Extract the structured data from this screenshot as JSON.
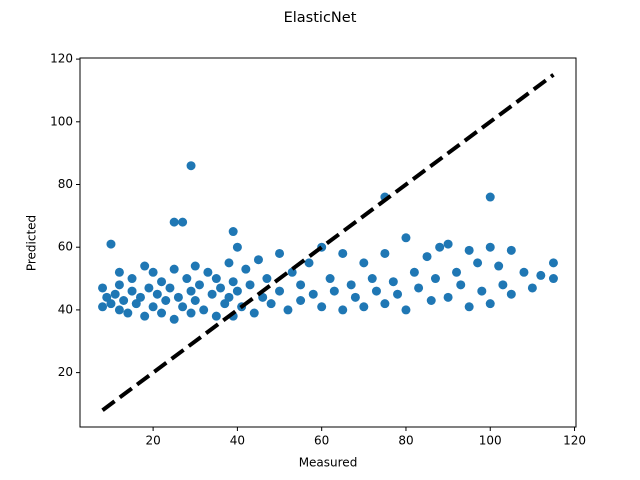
{
  "chart_data": {
    "type": "scatter",
    "title": "ElasticNet",
    "x_label": "Measured",
    "y_label": "Predicted",
    "color": "#1f77b4",
    "x": [
      8,
      8,
      9,
      10,
      11,
      12,
      12,
      13,
      14,
      15,
      15,
      16,
      17,
      18,
      18,
      19,
      20,
      20,
      21,
      22,
      22,
      23,
      24,
      25,
      25,
      26,
      27,
      28,
      29,
      29,
      30,
      30,
      31,
      32,
      33,
      34,
      35,
      35,
      36,
      37,
      38,
      38,
      39,
      39,
      40,
      40,
      41,
      42,
      43,
      44,
      45,
      46,
      47,
      48,
      50,
      50,
      52,
      53,
      55,
      55,
      57,
      58,
      60,
      60,
      62,
      63,
      65,
      65,
      67,
      68,
      70,
      70,
      72,
      73,
      75,
      75,
      77,
      78,
      80,
      80,
      82,
      83,
      85,
      86,
      87,
      88,
      90,
      90,
      92,
      93,
      95,
      95,
      97,
      98,
      100,
      100,
      102,
      103,
      105,
      105,
      108,
      110,
      112,
      115,
      115,
      29,
      25,
      27,
      39,
      75,
      100,
      10,
      12
    ],
    "y": [
      41,
      47,
      44,
      42,
      45,
      40,
      48,
      43,
      39,
      46,
      50,
      42,
      44,
      38,
      54,
      47,
      41,
      52,
      45,
      39,
      49,
      43,
      47,
      37,
      53,
      44,
      41,
      50,
      46,
      39,
      54,
      43,
      48,
      40,
      52,
      45,
      38,
      50,
      47,
      42,
      55,
      44,
      49,
      38,
      60,
      46,
      41,
      53,
      48,
      39,
      56,
      44,
      50,
      42,
      58,
      46,
      40,
      52,
      48,
      43,
      55,
      45,
      60,
      41,
      50,
      46,
      58,
      40,
      48,
      44,
      55,
      41,
      50,
      46,
      58,
      42,
      49,
      45,
      63,
      40,
      52,
      47,
      57,
      43,
      50,
      60,
      61,
      44,
      52,
      48,
      59,
      41,
      55,
      46,
      60,
      42,
      54,
      48,
      59,
      45,
      52,
      47,
      51,
      55,
      50,
      86,
      68,
      68,
      65,
      76,
      76,
      61,
      52
    ],
    "line": {
      "x": [
        8,
        115
      ],
      "y": [
        8,
        115
      ],
      "color": "#000000"
    },
    "xlim": [
      2.65,
      120.35
    ],
    "ylim": [
      2.65,
      120.35
    ],
    "xticks": [
      20,
      40,
      60,
      80,
      100,
      120
    ],
    "yticks": [
      20,
      40,
      60,
      80,
      100,
      120
    ]
  }
}
